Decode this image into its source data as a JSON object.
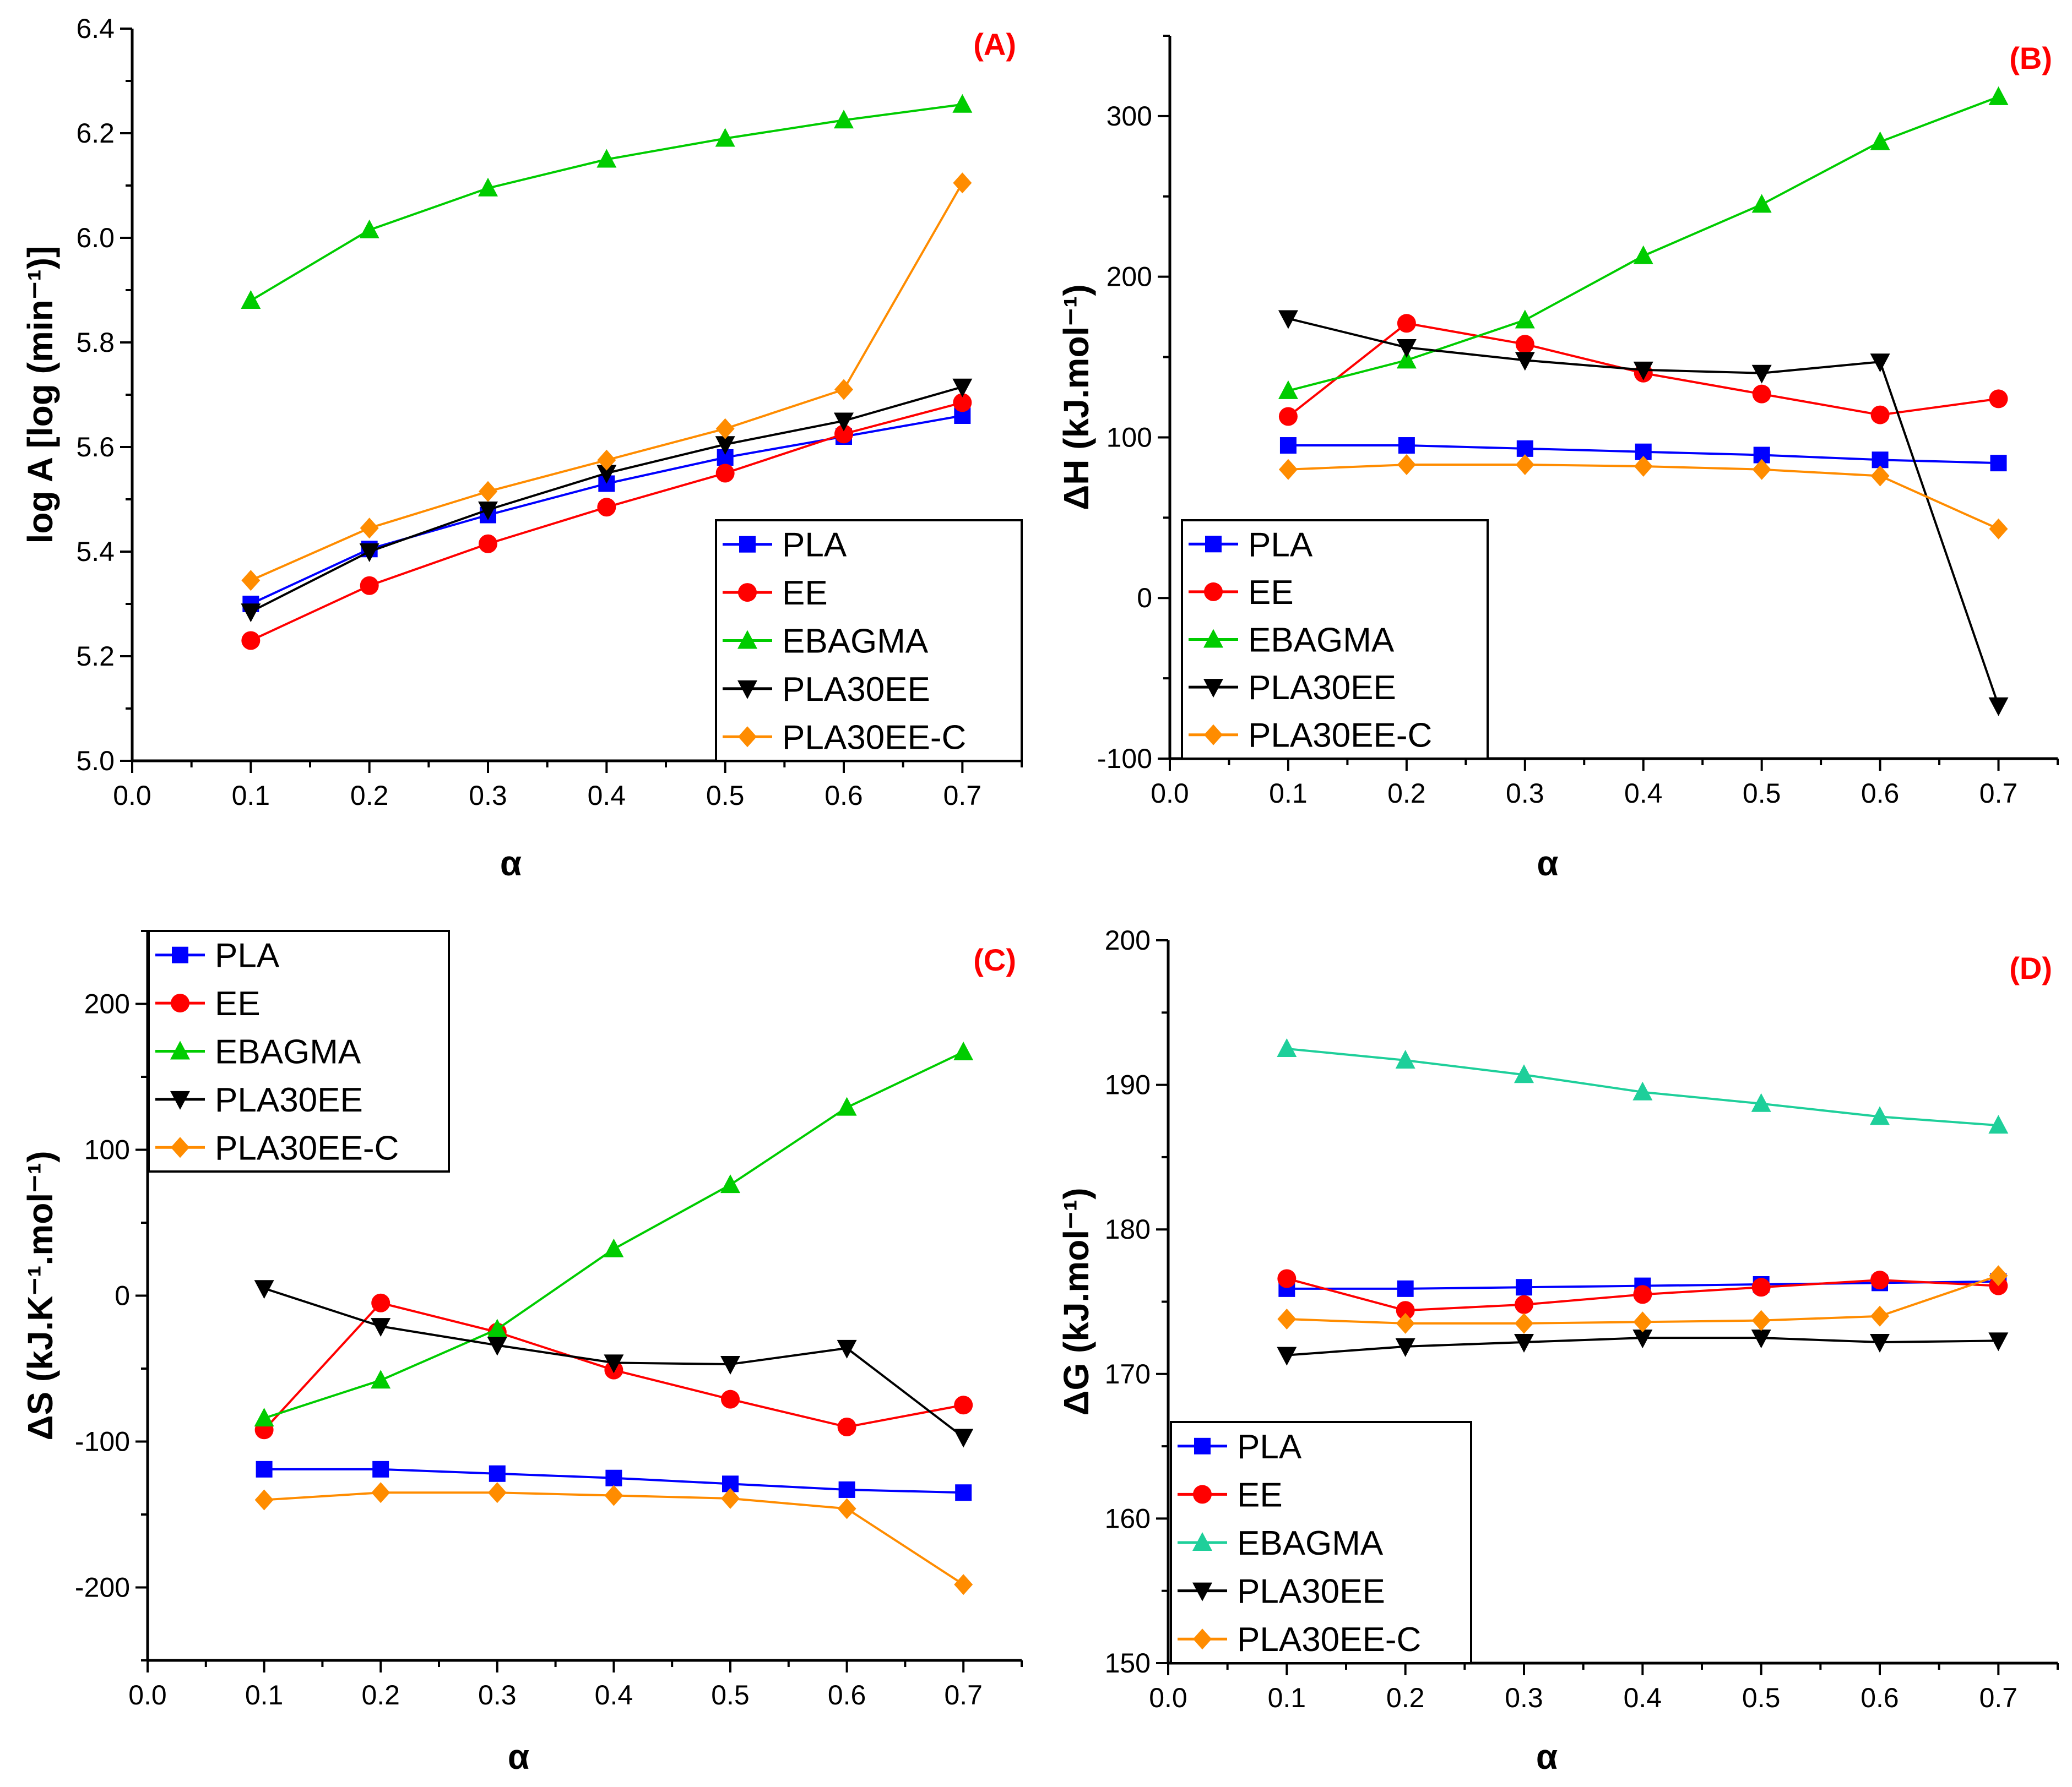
{
  "chart_data": [
    {
      "type": "line",
      "panel_label": "(A)",
      "xlabel": "α",
      "ylabel": "log A [log (min⁻¹)]",
      "xlim": [
        0.0,
        0.75
      ],
      "ylim": [
        5.0,
        6.4
      ],
      "x_ticks": [
        "0.0",
        "0.1",
        "0.2",
        "0.3",
        "0.4",
        "0.5",
        "0.6",
        "0.7"
      ],
      "y_ticks": [
        "5.0",
        "5.2",
        "5.4",
        "5.6",
        "5.8",
        "6.0",
        "6.2",
        "6.4"
      ],
      "legend_position": "bottom-right",
      "x": [
        0.1,
        0.2,
        0.3,
        0.4,
        0.5,
        0.6,
        0.7
      ],
      "series": [
        {
          "name": "PLA",
          "color": "#0000ff",
          "marker": "square",
          "values": [
            5.3,
            5.405,
            5.47,
            5.53,
            5.58,
            5.62,
            5.66
          ]
        },
        {
          "name": "EE",
          "color": "#ff0000",
          "marker": "circle",
          "values": [
            5.23,
            5.335,
            5.415,
            5.485,
            5.55,
            5.625,
            5.685
          ]
        },
        {
          "name": "EBAGMA",
          "color": "#00cc00",
          "marker": "triangle-up",
          "values": [
            5.88,
            6.015,
            6.095,
            6.15,
            6.19,
            6.225,
            6.255
          ]
        },
        {
          "name": "PLA30EE",
          "color": "#000000",
          "marker": "triangle-down",
          "values": [
            5.285,
            5.4,
            5.48,
            5.55,
            5.605,
            5.65,
            5.715
          ]
        },
        {
          "name": "PLA30EE-C",
          "color": "#ff8c00",
          "marker": "diamond",
          "values": [
            5.345,
            5.445,
            5.515,
            5.575,
            5.635,
            5.71,
            6.105
          ]
        }
      ]
    },
    {
      "type": "line",
      "panel_label": "(B)",
      "xlabel": "α",
      "ylabel": "ΔH (kJ.mol⁻¹)",
      "xlim": [
        0.0,
        0.75
      ],
      "ylim": [
        -100,
        350
      ],
      "x_ticks": [
        "0.0",
        "0.1",
        "0.2",
        "0.3",
        "0.4",
        "0.5",
        "0.6",
        "0.7"
      ],
      "y_ticks": [
        "-100",
        "0",
        "100",
        "200",
        "300"
      ],
      "legend_position": "bottom-left",
      "x": [
        0.1,
        0.2,
        0.3,
        0.4,
        0.5,
        0.6,
        0.7
      ],
      "series": [
        {
          "name": "PLA",
          "color": "#0000ff",
          "marker": "square",
          "values": [
            95,
            95,
            93,
            91,
            89,
            86,
            84
          ]
        },
        {
          "name": "EE",
          "color": "#ff0000",
          "marker": "circle",
          "values": [
            113,
            171,
            158,
            140,
            127,
            114,
            124
          ]
        },
        {
          "name": "EBAGMA",
          "color": "#00cc00",
          "marker": "triangle-up",
          "values": [
            129,
            148,
            173,
            213,
            245,
            284,
            312
          ]
        },
        {
          "name": "PLA30EE",
          "color": "#000000",
          "marker": "triangle-down",
          "values": [
            174,
            156,
            148,
            142,
            140,
            147,
            -67
          ]
        },
        {
          "name": "PLA30EE-C",
          "color": "#ff8c00",
          "marker": "diamond",
          "values": [
            80,
            83,
            83,
            82,
            80,
            76,
            43
          ]
        }
      ]
    },
    {
      "type": "line",
      "panel_label": "(C)",
      "xlabel": "α",
      "ylabel": "ΔS (kJ.K⁻¹.mol⁻¹)",
      "xlim": [
        0.0,
        0.75
      ],
      "ylim": [
        -250,
        250
      ],
      "x_ticks": [
        "0.0",
        "0.1",
        "0.2",
        "0.3",
        "0.4",
        "0.5",
        "0.6",
        "0.7"
      ],
      "y_ticks": [
        "-200",
        "-100",
        "0",
        "100",
        "200"
      ],
      "legend_position": "top-left",
      "x": [
        0.1,
        0.2,
        0.3,
        0.4,
        0.5,
        0.6,
        0.7
      ],
      "series": [
        {
          "name": "PLA",
          "color": "#0000ff",
          "marker": "square",
          "values": [
            -119,
            -119,
            -122,
            -125,
            -129,
            -133,
            -135
          ]
        },
        {
          "name": "EE",
          "color": "#ff0000",
          "marker": "circle",
          "values": [
            -92,
            -5,
            -25,
            -51,
            -71,
            -90,
            -75
          ]
        },
        {
          "name": "EBAGMA",
          "color": "#00cc00",
          "marker": "triangle-up",
          "values": [
            -84,
            -58,
            -23,
            32,
            76,
            129,
            167
          ]
        },
        {
          "name": "PLA30EE",
          "color": "#000000",
          "marker": "triangle-down",
          "values": [
            5,
            -21,
            -34,
            -46,
            -47,
            -36,
            -97
          ]
        },
        {
          "name": "PLA30EE-C",
          "color": "#ff8c00",
          "marker": "diamond",
          "values": [
            -140,
            -135,
            -135,
            -137,
            -139,
            -146,
            -198
          ]
        }
      ]
    },
    {
      "type": "line",
      "panel_label": "(D)",
      "xlabel": "α",
      "ylabel": "ΔG (kJ.mol⁻¹)",
      "xlim": [
        0.0,
        0.75
      ],
      "ylim": [
        150,
        200
      ],
      "x_ticks": [
        "0.0",
        "0.1",
        "0.2",
        "0.3",
        "0.4",
        "0.5",
        "0.6",
        "0.7"
      ],
      "y_ticks": [
        "150",
        "160",
        "170",
        "180",
        "190",
        "200"
      ],
      "legend_position": "bottom-left",
      "x": [
        0.1,
        0.2,
        0.3,
        0.4,
        0.5,
        0.6,
        0.7
      ],
      "series": [
        {
          "name": "PLA",
          "color": "#0000ff",
          "marker": "square",
          "values": [
            175.9,
            175.9,
            176.0,
            176.1,
            176.2,
            176.3,
            176.4
          ]
        },
        {
          "name": "EE",
          "color": "#ff0000",
          "marker": "circle",
          "values": [
            176.6,
            174.4,
            174.8,
            175.5,
            176.0,
            176.5,
            176.1
          ]
        },
        {
          "name": "EBAGMA",
          "color": "#1ecf9a",
          "marker": "triangle-up",
          "values": [
            192.5,
            191.7,
            190.7,
            189.5,
            188.7,
            187.8,
            187.2
          ]
        },
        {
          "name": "PLA30EE",
          "color": "#000000",
          "marker": "triangle-down",
          "values": [
            171.3,
            171.9,
            172.2,
            172.5,
            172.5,
            172.2,
            172.3
          ]
        },
        {
          "name": "PLA30EE-C",
          "color": "#ff8c00",
          "marker": "diamond",
          "values": [
            173.8,
            173.5,
            173.5,
            173.6,
            173.7,
            174.0,
            176.8
          ]
        }
      ]
    }
  ]
}
